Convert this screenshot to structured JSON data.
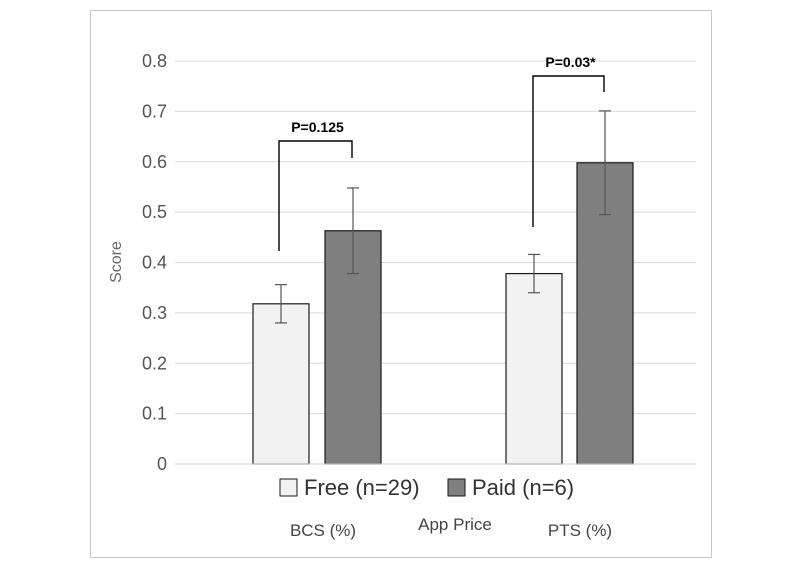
{
  "chart_data": {
    "type": "bar",
    "title": "",
    "ylabel": "Score",
    "xlabel": "App Price",
    "categories": [
      "BCS (%)",
      "PTS (%)"
    ],
    "ylim": [
      0,
      0.8
    ],
    "yticks": [
      0,
      0.1,
      0.2,
      0.3,
      0.4,
      0.5,
      0.6,
      0.7,
      0.8
    ],
    "ytick_labels": [
      "0",
      "0.1",
      "0.2",
      "0.3",
      "0.4",
      "0.5",
      "0.6",
      "0.7",
      "0.8"
    ],
    "grid": true,
    "legend_position": "bottom",
    "series": [
      {
        "name": "Free (n=29)",
        "color": "#f2f2f2",
        "values": [
          0.318,
          0.378
        ],
        "errors": [
          0.038,
          0.038
        ]
      },
      {
        "name": "Paid (n=6)",
        "color": "#7f7f7f",
        "values": [
          0.463,
          0.598
        ],
        "errors": [
          0.085,
          0.103
        ]
      }
    ],
    "annotations": [
      {
        "text": "P=0.125",
        "category": "BCS (%)"
      },
      {
        "text": "P=0.03*",
        "category": "PTS (%)"
      }
    ]
  }
}
